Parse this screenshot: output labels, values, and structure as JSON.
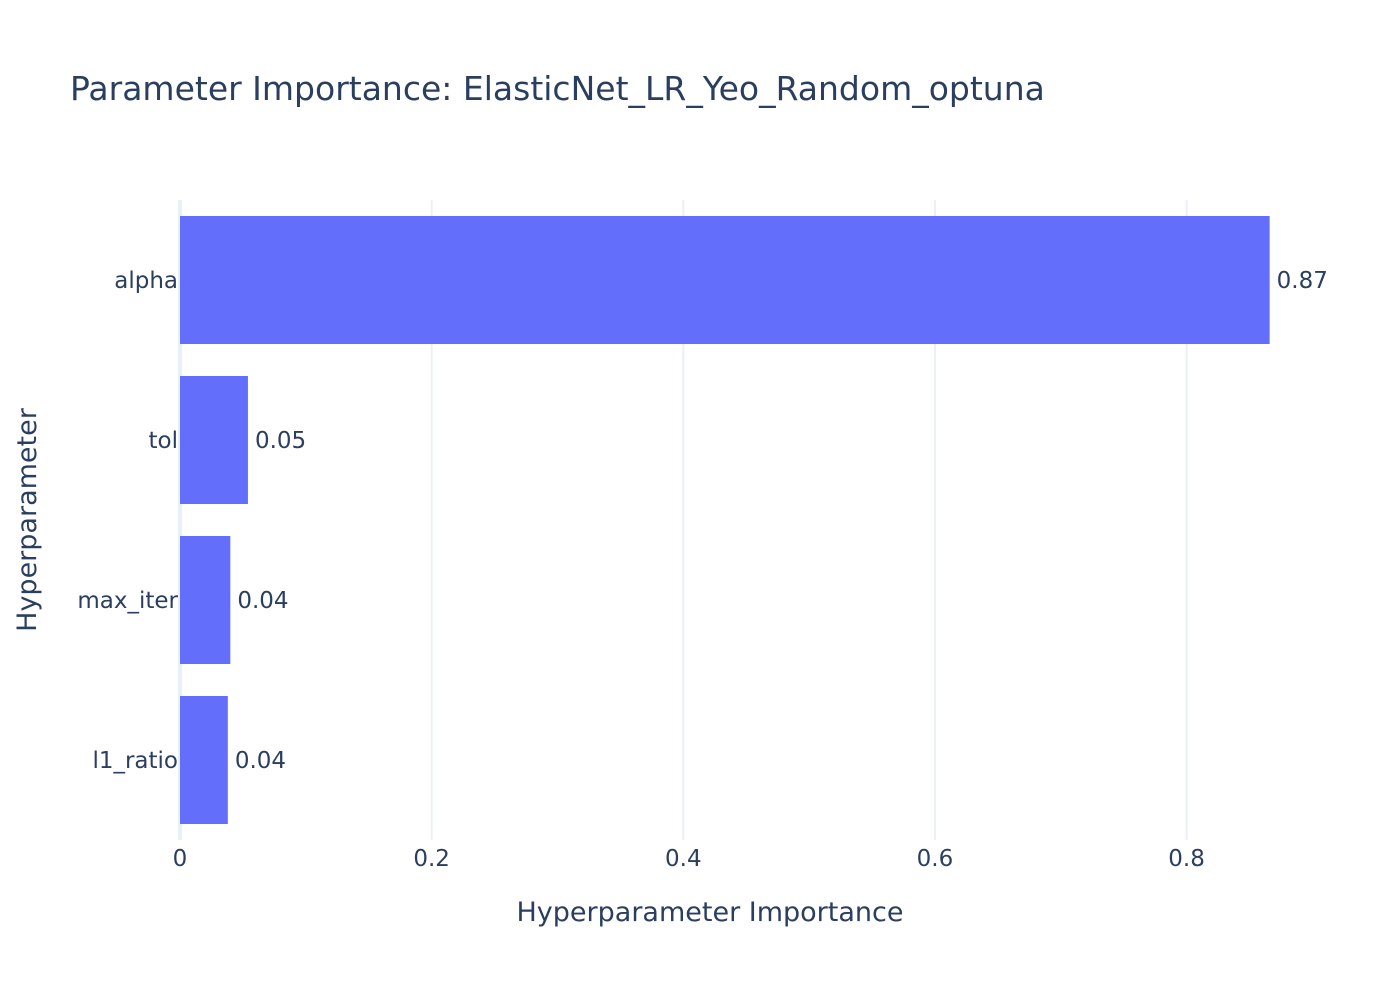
{
  "chart_data": {
    "type": "bar",
    "orientation": "horizontal",
    "title": "Parameter Importance: ElasticNet_LR_Yeo_Random_optuna",
    "xlabel": "Hyperparameter Importance",
    "ylabel": "Hyperparameter",
    "categories": [
      "alpha",
      "tol",
      "max_iter",
      "l1_ratio"
    ],
    "values": [
      0.866,
      0.054,
      0.04,
      0.038
    ],
    "data_labels": [
      "0.87",
      "0.05",
      "0.04",
      "0.04"
    ],
    "x_ticks": [
      0,
      0.2,
      0.4,
      0.6,
      0.8
    ],
    "x_tick_labels": [
      "0",
      "0.2",
      "0.4",
      "0.6",
      "0.8"
    ],
    "xlim": [
      0,
      0.91
    ],
    "grid": true,
    "bar_color": "#636efa",
    "grid_color": "#ebf0f8",
    "text_color": "#2a3f5f"
  }
}
